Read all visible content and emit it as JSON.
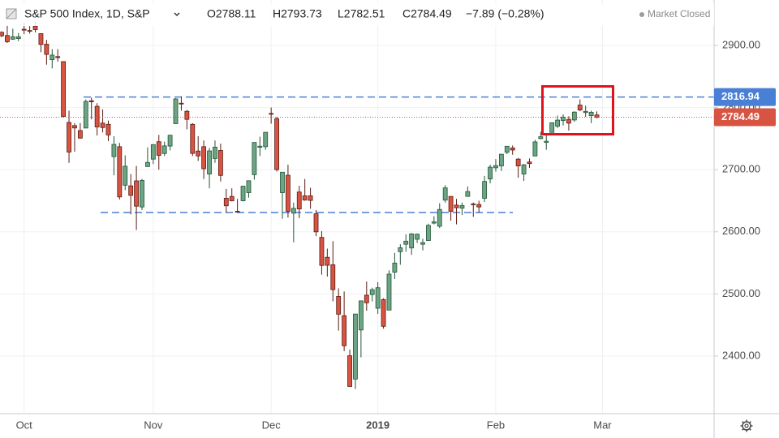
{
  "chart_data": {
    "type": "candlestick",
    "header": {
      "symbol": "S&P 500 Index, 1D, S&P",
      "ohlc_labels": [
        "O2788.11",
        "H2793.73",
        "L2782.51",
        "C2784.49"
      ],
      "change": "−7.89 (−0.28%)",
      "status": "Market Closed"
    },
    "categories": [
      null,
      null,
      null,
      null,
      "Oct",
      null,
      null,
      null,
      null,
      null,
      null,
      null,
      null,
      null,
      null,
      null,
      null,
      null,
      null,
      null,
      null,
      null,
      null,
      null,
      null,
      null,
      null,
      "Nov",
      null,
      null,
      null,
      null,
      null,
      null,
      null,
      null,
      null,
      null,
      null,
      null,
      null,
      null,
      null,
      null,
      null,
      null,
      null,
      null,
      "Dec",
      null,
      null,
      null,
      null,
      null,
      null,
      null,
      null,
      null,
      null,
      null,
      null,
      null,
      null,
      null,
      null,
      null,
      null,
      "2019",
      null,
      null,
      null,
      null,
      null,
      null,
      null,
      null,
      null,
      null,
      null,
      null,
      null,
      null,
      null,
      null,
      null,
      null,
      null,
      null,
      "Feb",
      null,
      null,
      null,
      null,
      null,
      null,
      null,
      null,
      null,
      null,
      null,
      null,
      null,
      null,
      null,
      null,
      null,
      null,
      "Mar"
    ],
    "open": [
      2921,
      2916,
      2910,
      2911,
      2926,
      2924,
      2931,
      2919,
      2902,
      2877,
      2882,
      2874,
      2776,
      2771,
      2763,
      2767,
      2811,
      2802,
      2775,
      2773,
      2721,
      2737,
      2675,
      2674,
      2682,
      2640,
      2705,
      2717,
      2745,
      2726,
      2738,
      2774,
      2807,
      2794,
      2773,
      2730,
      2737,
      2693,
      2718,
      2731,
      2654,
      2657,
      2633,
      2650,
      2663,
      2692,
      2736,
      2737,
      2790.5,
      2782,
      2663,
      2691,
      2630,
      2664,
      2658,
      2658,
      2629,
      2591,
      2559,
      2547,
      2496,
      2465,
      2400.56,
      2363,
      2442,
      2498,
      2499,
      2477,
      2491,
      2474,
      2535,
      2568,
      2580,
      2574,
      2588,
      2580,
      2586,
      2614,
      2609,
      2651,
      2657,
      2643,
      2638,
      2657,
      2644.97,
      2644,
      2654,
      2685,
      2703,
      2706,
      2728,
      2735,
      2717,
      2693,
      2712.4,
      2722,
      2750,
      2744,
      2760,
      2770,
      2779,
      2781,
      2780,
      2804,
      2792,
      2787,
      2788.11,
      null
    ],
    "high": [
      2923,
      2932,
      2927,
      2920,
      2937,
      2931,
      2939,
      2919,
      2909,
      2894,
      2894,
      2874,
      2795,
      2775,
      2775,
      2813,
      2816,
      2807,
      2797,
      2779,
      2754,
      2743,
      2723,
      2693,
      2706,
      2685,
      2736,
      2741,
      2756,
      2745,
      2756,
      2815,
      2818,
      2796,
      2775,
      2754,
      2747,
      2735,
      2747,
      2742,
      2669,
      2670,
      2653,
      2674,
      2682,
      2744,
      2753,
      2760,
      2800,
      2785,
      2696,
      2708,
      2647,
      2674,
      2685,
      2671,
      2635,
      2601,
      2573,
      2585,
      2509,
      2504,
      2410.34,
      2468,
      2489,
      2520,
      2510,
      2519,
      2493,
      2538,
      2566,
      2580,
      2596,
      2598,
      2597,
      2589,
      2613,
      2625,
      2646,
      2675,
      2657,
      2653,
      2647,
      2673,
      2647,
      2650,
      2690,
      2708,
      2717,
      2724,
      2738,
      2739,
      2719,
      2709,
      2718,
      2748,
      2761,
      2757,
      2776,
      2787,
      2789,
      2786,
      2794,
      2813,
      2803,
      2795,
      2793.73,
      null
    ],
    "low": [
      2913,
      2904,
      2909,
      2907,
      2918,
      2919,
      2921,
      2889,
      2869,
      2863,
      2874,
      2784,
      2711,
      2729,
      2750,
      2767,
      2781,
      2755,
      2760,
      2746,
      2691,
      2652,
      2667,
      2628,
      2603,
      2635,
      2705,
      2709,
      2700,
      2722,
      2731,
      2774,
      2795,
      2765,
      2722,
      2714,
      2685,
      2670,
      2711,
      2681,
      2631,
      2649,
      2632,
      2649,
      2655,
      2684,
      2722,
      2732,
      2774,
      2697,
      2621,
      2623,
      2583,
      2622,
      2650,
      2637,
      2593,
      2531,
      2528,
      2488,
      2441,
      2408,
      2351.1,
      2347,
      2398,
      2473,
      2488,
      2468,
      2444,
      2474,
      2524,
      2547,
      2568,
      2563,
      2582,
      2570,
      2586,
      2612,
      2606,
      2647,
      2618,
      2612,
      2627,
      2657,
      2624,
      2631,
      2648,
      2678,
      2697,
      2698,
      2725,
      2724,
      2687,
      2682,
      2703,
      2722,
      2749,
      2732,
      2760,
      2767,
      2771,
      2763,
      2777,
      2794,
      2785,
      2775,
      2782.51,
      null
    ],
    "close": [
      2915.56,
      2905.97,
      2914,
      2913.98,
      2924.59,
      2923.43,
      2925.51,
      2901.61,
      2885.57,
      2884.43,
      2880.34,
      2785.68,
      2728.37,
      2767.13,
      2750.79,
      2809.92,
      2809.21,
      2768.78,
      2767.78,
      2755.88,
      2740.69,
      2656.1,
      2705.57,
      2658.69,
      2641.25,
      2682.63,
      2711.74,
      2740.37,
      2723.06,
      2738.31,
      2755.45,
      2813.89,
      2806.83,
      2781.01,
      2726.22,
      2722.18,
      2701.58,
      2730.2,
      2736.27,
      2690.73,
      2641.89,
      2649.93,
      2632.56,
      2673.45,
      2682.17,
      2743.79,
      2737.8,
      2760.17,
      2790.37,
      2700.06,
      2695.95,
      2633.08,
      2637.72,
      2636.78,
      2651.07,
      2650.54,
      2599.95,
      2545.94,
      2546.16,
      2506.96,
      2467.42,
      2416.62,
      2351.1,
      2467.7,
      2488.83,
      2485.74,
      2506.85,
      2510.03,
      2447.89,
      2531.94,
      2549.69,
      2574.41,
      2584.96,
      2596.64,
      2596.26,
      2582.61,
      2610.3,
      2616.1,
      2635.96,
      2670.71,
      2632.9,
      2638.7,
      2642.33,
      2664.76,
      2643.85,
      2640,
      2681.05,
      2704.1,
      2706.53,
      2724.87,
      2737.7,
      2731.61,
      2706.05,
      2707.88,
      2709.8,
      2744.73,
      2753.03,
      2745.73,
      2775.6,
      2779.76,
      2784.7,
      2774.88,
      2792.67,
      2796.11,
      2793.9,
      2792.38,
      2784.49,
      null
    ],
    "ylim": [
      2307.3,
      2973.1
    ],
    "yticks": [
      {
        "value": 2400,
        "label": "2400.00"
      },
      {
        "value": 2500,
        "label": "2500.00"
      },
      {
        "value": 2600,
        "label": "2600.00"
      },
      {
        "value": 2700,
        "label": "2700.00"
      },
      {
        "value": 2800,
        "label": "2800.00"
      },
      {
        "value": 2900,
        "label": "2900.00"
      }
    ],
    "resistance_level": 2816.94,
    "support_level": 2631,
    "grid": true,
    "up_color": "#6ba583",
    "up_border": "#225437",
    "down_color": "#d75442",
    "down_border": "#5b1a13",
    "level_color": "#4a7fd6",
    "close_color": "#d75442"
  }
}
